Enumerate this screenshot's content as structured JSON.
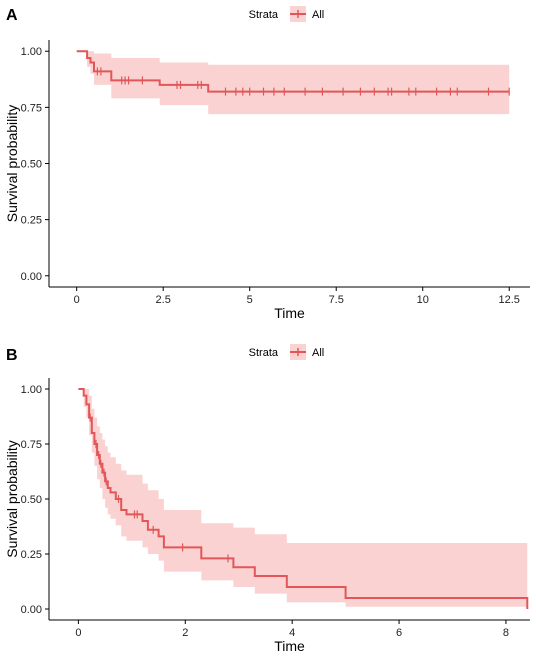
{
  "panels": [
    {
      "label": "A",
      "legend_title": "Strata",
      "legend_entry": "All"
    },
    {
      "label": "B",
      "legend_title": "Strata",
      "legend_entry": "All"
    }
  ],
  "colors": {
    "curve": "#e15759",
    "band": "#f8b4b4",
    "axis": "#000000"
  },
  "chart_data": [
    {
      "type": "line",
      "subtype": "kaplan-meier",
      "title": "",
      "xlabel": "Time",
      "ylabel": "Survival probability",
      "xlim": [
        -0.8,
        13.1
      ],
      "ylim": [
        -0.05,
        1.05
      ],
      "x_ticks": [
        0,
        2.5,
        5,
        7.5,
        10,
        12.5
      ],
      "x_tick_labels": [
        "0",
        "2.5",
        "5",
        "7.5",
        "10",
        "12.5"
      ],
      "y_ticks": [
        0,
        0.25,
        0.5,
        0.75,
        1
      ],
      "y_tick_labels": [
        "0.00",
        "0.25",
        "0.50",
        "0.75",
        "1.00"
      ],
      "legend_position": "top",
      "grid": false,
      "series": [
        {
          "name": "All",
          "steps": [
            [
              0,
              1.0
            ],
            [
              0.3,
              0.97
            ],
            [
              0.4,
              0.95
            ],
            [
              0.5,
              0.91
            ],
            [
              1.0,
              0.87
            ],
            [
              2.4,
              0.85
            ],
            [
              3.8,
              0.82
            ],
            [
              12.5,
              0.82
            ]
          ],
          "ci_lower": [
            [
              0,
              1.0
            ],
            [
              0.3,
              0.93
            ],
            [
              0.4,
              0.9
            ],
            [
              0.5,
              0.85
            ],
            [
              1.0,
              0.79
            ],
            [
              2.4,
              0.76
            ],
            [
              3.8,
              0.72
            ],
            [
              12.5,
              0.72
            ]
          ],
          "ci_upper": [
            [
              0,
              1.0
            ],
            [
              0.3,
              1.0
            ],
            [
              0.4,
              1.0
            ],
            [
              0.5,
              0.99
            ],
            [
              1.0,
              0.97
            ],
            [
              2.4,
              0.95
            ],
            [
              3.8,
              0.94
            ],
            [
              12.5,
              0.94
            ]
          ],
          "censored": [
            0.6,
            0.7,
            1.3,
            1.4,
            1.5,
            1.9,
            2.9,
            3.0,
            3.5,
            3.6,
            4.3,
            4.6,
            4.8,
            5.0,
            5.4,
            5.7,
            6.0,
            6.6,
            7.1,
            7.7,
            8.2,
            8.6,
            9.0,
            9.1,
            9.6,
            9.8,
            10.4,
            10.8,
            11.0,
            11.9,
            12.5
          ]
        }
      ]
    },
    {
      "type": "line",
      "subtype": "kaplan-meier",
      "title": "",
      "xlabel": "Time",
      "ylabel": "Survival probability",
      "xlim": [
        -0.55,
        8.45
      ],
      "ylim": [
        -0.05,
        1.05
      ],
      "x_ticks": [
        0,
        2,
        4,
        6,
        8
      ],
      "x_tick_labels": [
        "0",
        "2",
        "4",
        "6",
        "8"
      ],
      "y_ticks": [
        0,
        0.25,
        0.5,
        0.75,
        1
      ],
      "y_tick_labels": [
        "0.00",
        "0.25",
        "0.50",
        "0.75",
        "1.00"
      ],
      "legend_position": "top",
      "grid": false,
      "series": [
        {
          "name": "All",
          "steps": [
            [
              0,
              1.0
            ],
            [
              0.1,
              0.97
            ],
            [
              0.15,
              0.93
            ],
            [
              0.2,
              0.87
            ],
            [
              0.25,
              0.8
            ],
            [
              0.3,
              0.75
            ],
            [
              0.35,
              0.7
            ],
            [
              0.4,
              0.66
            ],
            [
              0.45,
              0.62
            ],
            [
              0.5,
              0.58
            ],
            [
              0.55,
              0.55
            ],
            [
              0.6,
              0.53
            ],
            [
              0.7,
              0.5
            ],
            [
              0.8,
              0.45
            ],
            [
              0.9,
              0.43
            ],
            [
              1.2,
              0.4
            ],
            [
              1.3,
              0.36
            ],
            [
              1.5,
              0.33
            ],
            [
              1.6,
              0.28
            ],
            [
              2.3,
              0.23
            ],
            [
              2.9,
              0.19
            ],
            [
              3.3,
              0.15
            ],
            [
              3.9,
              0.1
            ],
            [
              5.0,
              0.05
            ],
            [
              8.4,
              0.05
            ],
            [
              8.4,
              0.0
            ]
          ],
          "ci_lower": [
            [
              0,
              1.0
            ],
            [
              0.1,
              0.92
            ],
            [
              0.15,
              0.87
            ],
            [
              0.2,
              0.79
            ],
            [
              0.25,
              0.71
            ],
            [
              0.3,
              0.65
            ],
            [
              0.35,
              0.59
            ],
            [
              0.4,
              0.55
            ],
            [
              0.45,
              0.5
            ],
            [
              0.5,
              0.46
            ],
            [
              0.55,
              0.43
            ],
            [
              0.6,
              0.41
            ],
            [
              0.7,
              0.38
            ],
            [
              0.8,
              0.33
            ],
            [
              0.9,
              0.31
            ],
            [
              1.2,
              0.28
            ],
            [
              1.3,
              0.25
            ],
            [
              1.5,
              0.22
            ],
            [
              1.6,
              0.17
            ],
            [
              2.3,
              0.13
            ],
            [
              2.9,
              0.1
            ],
            [
              3.3,
              0.07
            ],
            [
              3.9,
              0.03
            ],
            [
              5.0,
              0.01
            ],
            [
              8.4,
              0.01
            ]
          ],
          "ci_upper": [
            [
              0,
              1.0
            ],
            [
              0.1,
              1.0
            ],
            [
              0.15,
              1.0
            ],
            [
              0.2,
              0.97
            ],
            [
              0.25,
              0.91
            ],
            [
              0.3,
              0.87
            ],
            [
              0.35,
              0.83
            ],
            [
              0.4,
              0.8
            ],
            [
              0.45,
              0.77
            ],
            [
              0.5,
              0.74
            ],
            [
              0.55,
              0.71
            ],
            [
              0.6,
              0.69
            ],
            [
              0.7,
              0.66
            ],
            [
              0.8,
              0.63
            ],
            [
              0.9,
              0.61
            ],
            [
              1.2,
              0.57
            ],
            [
              1.3,
              0.54
            ],
            [
              1.5,
              0.5
            ],
            [
              1.6,
              0.45
            ],
            [
              2.3,
              0.39
            ],
            [
              2.9,
              0.37
            ],
            [
              3.3,
              0.34
            ],
            [
              3.9,
              0.3
            ],
            [
              5.0,
              0.3
            ],
            [
              8.4,
              0.3
            ]
          ],
          "censored": [
            0.22,
            0.33,
            0.38,
            0.42,
            0.48,
            0.52,
            0.75,
            1.05,
            1.1,
            1.4,
            1.95,
            2.8
          ]
        }
      ]
    }
  ]
}
